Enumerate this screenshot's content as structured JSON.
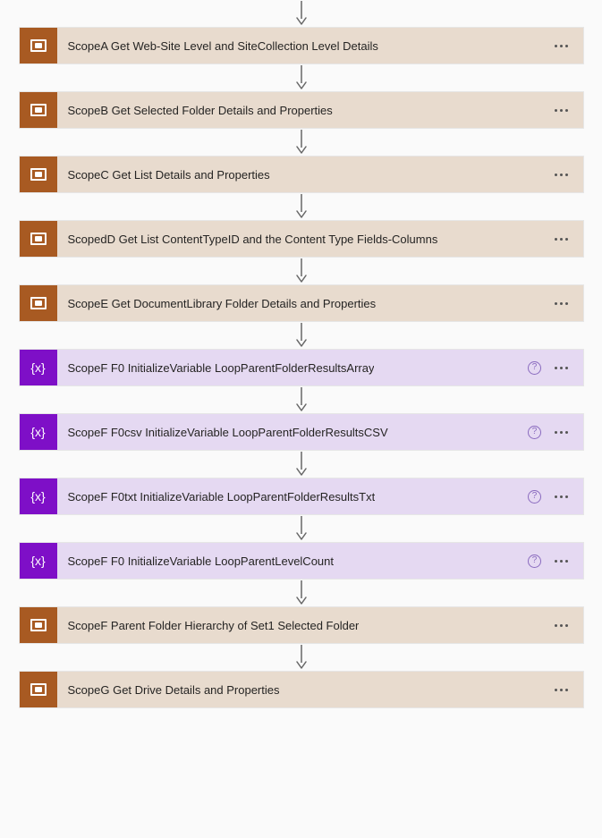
{
  "arrow": {
    "stroke": "#666666",
    "head_size": 6,
    "shaft_height": 18
  },
  "steps": [
    {
      "type": "scope",
      "label": "ScopeA Get Web-Site Level and SiteCollection Level Details",
      "help": false
    },
    {
      "type": "scope",
      "label": "ScopeB Get Selected Folder Details and Properties",
      "help": false
    },
    {
      "type": "scope",
      "label": "ScopeC Get List Details and Properties",
      "help": false
    },
    {
      "type": "scope",
      "label": "ScopedD Get List ContentTypeID and the Content Type Fields-Columns",
      "help": false
    },
    {
      "type": "scope",
      "label": "ScopeE Get DocumentLibrary Folder Details and Properties",
      "help": false
    },
    {
      "type": "variable",
      "label": "ScopeF F0 InitializeVariable LoopParentFolderResultsArray",
      "help": true
    },
    {
      "type": "variable",
      "label": "ScopeF F0csv InitializeVariable LoopParentFolderResultsCSV",
      "help": true
    },
    {
      "type": "variable",
      "label": "ScopeF F0txt InitializeVariable LoopParentFolderResultsTxt",
      "help": true
    },
    {
      "type": "variable",
      "label": "ScopeF F0 InitializeVariable LoopParentLevelCount",
      "help": true
    },
    {
      "type": "scope",
      "label": "ScopeF Parent Folder Hierarchy of Set1 Selected Folder",
      "help": false
    },
    {
      "type": "scope",
      "label": "ScopeG Get Drive Details and Properties",
      "help": false
    }
  ],
  "colors": {
    "scope_icon_bg": "#a85a22",
    "scope_body_bg": "#e8dbce",
    "variable_icon_bg": "#7e0fc7",
    "variable_body_bg": "#e5d9f2",
    "page_bg": "#fafafa",
    "text": "#252423"
  },
  "leading_arrow": true
}
